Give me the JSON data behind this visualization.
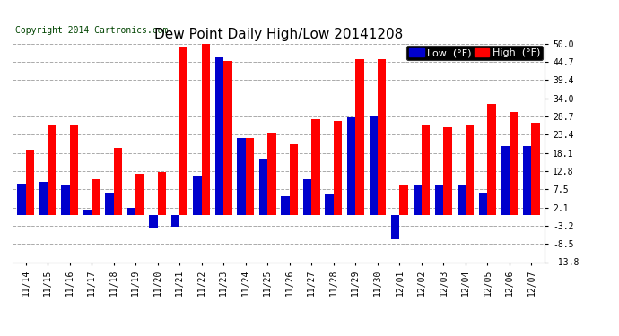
{
  "title": "Dew Point Daily High/Low 20141208",
  "copyright": "Copyright 2014 Cartronics.com",
  "legend_low": "Low  (°F)",
  "legend_high": "High  (°F)",
  "categories": [
    "11/14",
    "11/15",
    "11/16",
    "11/17",
    "11/18",
    "11/19",
    "11/20",
    "11/21",
    "11/22",
    "11/23",
    "11/24",
    "11/25",
    "11/26",
    "11/27",
    "11/28",
    "11/29",
    "11/30",
    "12/01",
    "12/02",
    "12/03",
    "12/04",
    "12/05",
    "12/06",
    "12/07"
  ],
  "high_values": [
    19.0,
    26.0,
    26.0,
    10.5,
    19.5,
    12.0,
    12.5,
    49.0,
    51.0,
    45.0,
    22.5,
    24.0,
    20.5,
    28.0,
    27.5,
    45.5,
    45.5,
    8.5,
    26.5,
    25.5,
    26.0,
    32.5,
    30.0,
    27.0
  ],
  "low_values": [
    9.0,
    9.5,
    8.5,
    1.5,
    6.5,
    2.0,
    -4.0,
    -3.5,
    11.5,
    46.0,
    22.5,
    16.5,
    5.5,
    10.5,
    6.0,
    28.5,
    29.0,
    -7.0,
    8.5,
    8.5,
    8.5,
    6.5,
    20.0,
    20.0
  ],
  "high_color": "#ff0000",
  "low_color": "#0000cc",
  "background_color": "#ffffff",
  "grid_color": "#aaaaaa",
  "yticks": [
    -13.8,
    -8.5,
    -3.2,
    2.1,
    7.5,
    12.8,
    18.1,
    23.4,
    28.7,
    34.0,
    39.4,
    44.7,
    50.0
  ],
  "ylim": [
    -13.8,
    50.0
  ],
  "bar_width": 0.38,
  "title_fontsize": 11,
  "tick_fontsize": 7,
  "legend_fontsize": 8,
  "copyright_fontsize": 7
}
